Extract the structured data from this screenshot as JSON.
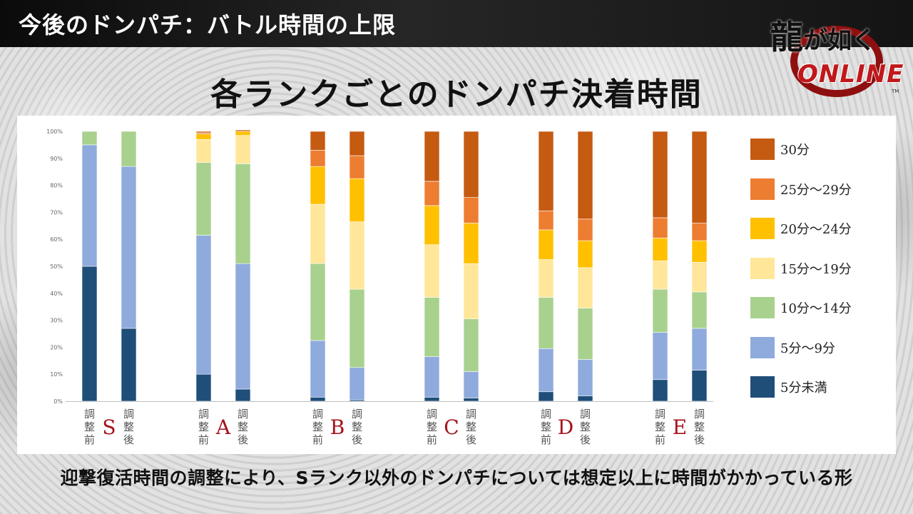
{
  "header": {
    "title": "今後のドンパチ：バトル時間の上限"
  },
  "logo": {
    "main_a": "龍",
    "main_b": "が如く",
    "sub": "ONLINE",
    "tm": "TM"
  },
  "caption": "迎撃復活時間の調整により、Sランク以外のドンパチについては想定以上に時間がかかっている形",
  "chart_data": {
    "type": "bar",
    "stacked": true,
    "percent": true,
    "title": "各ランクごとのドンパチ決着時間",
    "ylim": [
      0,
      100
    ],
    "ytick_labels": [
      "0%",
      "10%",
      "20%",
      "30%",
      "40%",
      "50%",
      "60%",
      "70%",
      "80%",
      "90%",
      "100%"
    ],
    "grid": false,
    "legend_position": "right",
    "bar_labels": [
      "調整前",
      "調整後"
    ],
    "groups": [
      "S",
      "A",
      "B",
      "C",
      "D",
      "E"
    ],
    "categories": [
      "S 調整前",
      "S 調整後",
      "A 調整前",
      "A 調整後",
      "B 調整前",
      "B 調整後",
      "C 調整前",
      "C 調整後",
      "D 調整前",
      "D 調整後",
      "E 調整前",
      "E 調整後"
    ],
    "series": [
      {
        "name": "5分未満",
        "color": "#1f4e79",
        "values": [
          50,
          27,
          10,
          4.5,
          1.5,
          0.5,
          1.5,
          1.2,
          3.5,
          2,
          8,
          11.5
        ]
      },
      {
        "name": "5分～9分",
        "color": "#8faadc",
        "values": [
          45,
          60,
          51.5,
          46.5,
          21,
          12,
          15,
          9.8,
          16,
          13.5,
          17.5,
          15.5
        ]
      },
      {
        "name": "10分～14分",
        "color": "#a9d18e",
        "values": [
          5,
          13,
          27,
          37,
          28.5,
          29,
          22,
          19.5,
          19,
          19,
          16,
          13.5
        ]
      },
      {
        "name": "15分～19分",
        "color": "#ffe699",
        "values": [
          0,
          0,
          8.5,
          10.5,
          22,
          25,
          19.5,
          20.5,
          14,
          15,
          10.5,
          11
        ]
      },
      {
        "name": "20分～24分",
        "color": "#ffc000",
        "values": [
          0,
          0,
          2,
          1.5,
          14,
          16,
          14.5,
          15,
          11,
          10,
          8.5,
          8
        ]
      },
      {
        "name": "25分～29分",
        "color": "#ed7d31",
        "values": [
          0,
          0,
          0.5,
          0,
          6,
          8.5,
          9,
          9.5,
          7,
          8,
          7.5,
          6.5
        ]
      },
      {
        "name": "30分",
        "color": "#c55a11",
        "values": [
          0,
          0,
          0.5,
          0.5,
          7,
          9,
          18.5,
          24.5,
          29.5,
          32.5,
          32,
          34
        ]
      }
    ]
  }
}
